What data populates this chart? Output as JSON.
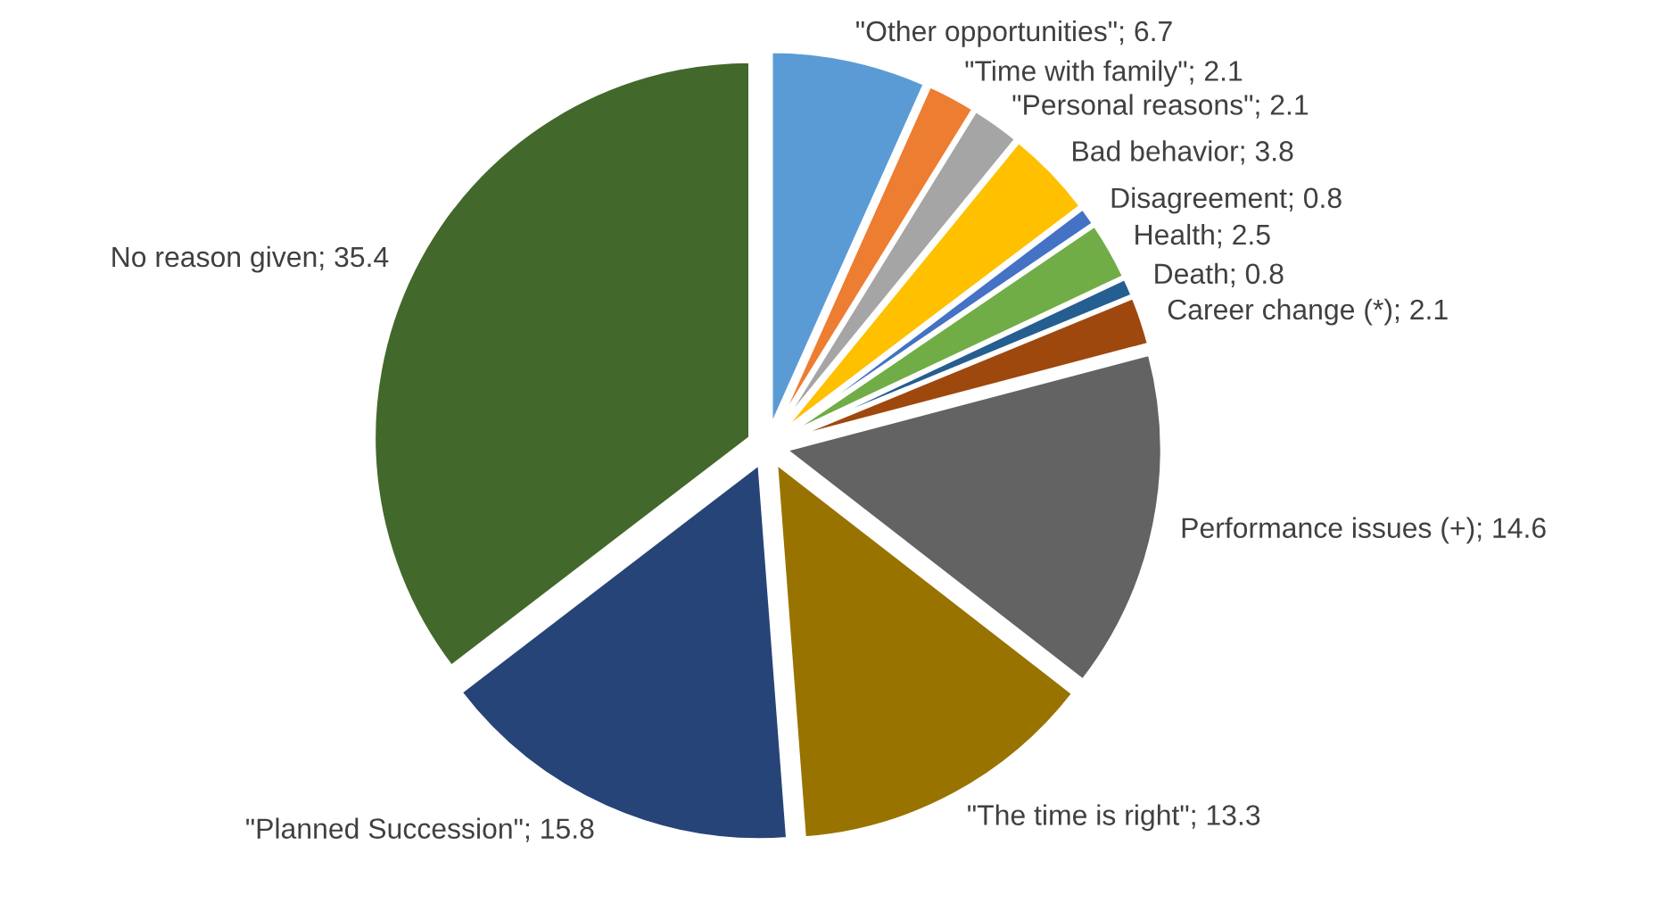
{
  "chart_data": {
    "type": "pie",
    "categories": [
      "\"Other opportunities\"",
      "\"Time with family\"",
      "\"Personal reasons\"",
      "Bad behavior",
      "Disagreement",
      "Health",
      "Death",
      "Career change (*)",
      "Performance issues (+)",
      "\"The time is right\"",
      "\"Planned Succession\"",
      "No reason given"
    ],
    "values": [
      6.7,
      2.1,
      2.1,
      3.8,
      0.8,
      2.5,
      0.8,
      2.1,
      14.6,
      13.3,
      15.8,
      35.4
    ],
    "colors": [
      "#5b9bd5",
      "#ed7d31",
      "#a5a5a5",
      "#ffc000",
      "#4472c4",
      "#70ad47",
      "#255e91",
      "#9e480e",
      "#636363",
      "#997300",
      "#264478",
      "#43682b"
    ],
    "value_labels": [
      "; 6.7",
      "; 2.1",
      "; 2.1",
      "; 3.8",
      "; 0.8",
      "; 2.5",
      "; 0.8",
      "; 2.1",
      "; 14.6",
      "; 13.3",
      "; 15.8",
      "; 35.4"
    ]
  }
}
